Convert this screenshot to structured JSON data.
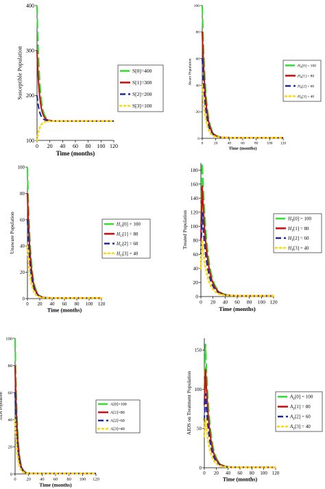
{
  "chart_data": [
    {
      "type": "line",
      "title": "",
      "xlabel": "Time (months)",
      "ylabel": "Susceptible Population",
      "xlim": [
        0,
        120
      ],
      "ylim": [
        100,
        400
      ],
      "xticks": [
        "0",
        "20",
        "40",
        "60",
        "80",
        "100",
        "120"
      ],
      "yticks": [
        "100",
        "200",
        "300",
        "400"
      ],
      "legend_position": "right",
      "grid": false,
      "equilibrium": 143,
      "decay": 0.25,
      "series": [
        {
          "name": "S[0]=400",
          "init": 400,
          "color": "#33dd33",
          "dash": "14,5"
        },
        {
          "name": "S[1]=300",
          "init": 300,
          "color": "#cc1111",
          "dash": ""
        },
        {
          "name": "S[2]=200",
          "init": 200,
          "color": "#1a2aa0",
          "dash": "8,4"
        },
        {
          "name": "S[3]=100",
          "init": 100,
          "color": "#ffd700",
          "dash": "2,4"
        }
      ]
    },
    {
      "type": "line",
      "title": "",
      "xlabel": "Time (months)",
      "ylabel": "Aware Population",
      "xlim": [
        0,
        120
      ],
      "ylim": [
        0,
        100
      ],
      "xticks": [
        "0",
        "20",
        "40",
        "60",
        "80",
        "100",
        "120"
      ],
      "yticks": [
        "0",
        "20",
        "40",
        "60",
        "80",
        "100"
      ],
      "legend_position": "right",
      "grid": false,
      "equilibrium": 0.5,
      "decay": 0.2,
      "series": [
        {
          "name": "H_A[0] = 100",
          "init": 100,
          "color": "#33dd33",
          "dash": "14,5"
        },
        {
          "name": "H_A[1] = 80",
          "init": 80,
          "color": "#cc1111",
          "dash": ""
        },
        {
          "name": "H_A[2] = 60",
          "init": 60,
          "color": "#1a2aa0",
          "dash": "8,4"
        },
        {
          "name": "H_A[3] = 40",
          "init": 40,
          "color": "#ffd700",
          "dash": "2,4"
        }
      ]
    },
    {
      "type": "line",
      "title": "",
      "xlabel": "Time (months)",
      "ylabel": "Unaware Population",
      "xlim": [
        0,
        120
      ],
      "ylim": [
        0,
        100
      ],
      "xticks": [
        "0",
        "20",
        "40",
        "60",
        "80",
        "100",
        "120"
      ],
      "yticks": [
        "0",
        "20",
        "40",
        "60",
        "80",
        "100"
      ],
      "legend_position": "right",
      "grid": false,
      "equilibrium": 0.5,
      "decay": 0.2,
      "series": [
        {
          "name": "H_U[0] = 100",
          "init": 100,
          "color": "#33dd33",
          "dash": "14,5"
        },
        {
          "name": "H_U[1] = 80",
          "init": 80,
          "color": "#cc1111",
          "dash": ""
        },
        {
          "name": "H_U[2] = 60",
          "init": 60,
          "color": "#1a2aa0",
          "dash": "8,4"
        },
        {
          "name": "H_U[3] = 40",
          "init": 40,
          "color": "#ffd700",
          "dash": "2,4"
        }
      ]
    },
    {
      "type": "line",
      "title": "",
      "xlabel": "Time (months)",
      "ylabel": "Treated Population",
      "xlim": [
        0,
        120
      ],
      "ylim": [
        0,
        190
      ],
      "xticks": [
        "0",
        "20",
        "40",
        "60",
        "80",
        "100",
        "120"
      ],
      "yticks": [
        "0",
        "20",
        "40",
        "60",
        "80",
        "100",
        "120",
        "140",
        "160",
        "180"
      ],
      "legend_position": "right",
      "grid": false,
      "equilibrium": 1,
      "decay": 0.12,
      "peak_month": 2,
      "series": [
        {
          "name": "H_T[0] = 100",
          "init": 100,
          "peak": 195,
          "color": "#33dd33",
          "dash": "14,5"
        },
        {
          "name": "H_T[1] = 80",
          "init": 80,
          "peak": 158,
          "color": "#cc1111",
          "dash": ""
        },
        {
          "name": "H_T[2] = 60",
          "init": 60,
          "peak": 120,
          "color": "#1a2aa0",
          "dash": "8,4"
        },
        {
          "name": "H_T[3] = 40",
          "init": 40,
          "peak": 80,
          "color": "#ffd700",
          "dash": "2,4"
        }
      ]
    },
    {
      "type": "line",
      "title": "",
      "xlabel": "Time (months)",
      "ylabel": "AIDS Population",
      "xlim": [
        0,
        120
      ],
      "ylim": [
        0,
        100
      ],
      "xticks": [
        "0",
        "20",
        "40",
        "60",
        "80",
        "100",
        "120"
      ],
      "yticks": [
        "0",
        "20",
        "40",
        "60",
        "80",
        "100"
      ],
      "legend_position": "right",
      "grid": false,
      "equilibrium": 0.3,
      "decay": 0.3,
      "series": [
        {
          "name": "A[0]=100",
          "init": 100,
          "color": "#33dd33",
          "dash": "14,5"
        },
        {
          "name": "A[1]=80",
          "init": 80,
          "color": "#cc1111",
          "dash": ""
        },
        {
          "name": "A[2]=60",
          "init": 60,
          "color": "#1a2aa0",
          "dash": "8,4"
        },
        {
          "name": "A[3]=40",
          "init": 40,
          "color": "#ffd700",
          "dash": "2,4"
        }
      ]
    },
    {
      "type": "line",
      "title": "",
      "xlabel": "Time (months)",
      "ylabel": "AIDS on Treatment Population",
      "xlim": [
        0,
        120
      ],
      "ylim": [
        0,
        165
      ],
      "xticks": [
        "0",
        "20",
        "40",
        "60",
        "80",
        "100",
        "120"
      ],
      "yticks": [
        "0",
        "50",
        "100",
        "150"
      ],
      "legend_position": "right",
      "grid": false,
      "equilibrium": 0.5,
      "decay": 0.14,
      "peak_month": 2,
      "series": [
        {
          "name": "A_T[0] = 100",
          "init": 100,
          "peak": 158,
          "color": "#33dd33",
          "dash": "14,5"
        },
        {
          "name": "A_T[1] = 80",
          "init": 80,
          "peak": 126,
          "color": "#cc1111",
          "dash": ""
        },
        {
          "name": "A_T[2] = 60",
          "init": 60,
          "peak": 95,
          "color": "#1a2aa0",
          "dash": "8,4"
        },
        {
          "name": "A_T[3] = 40",
          "init": 40,
          "peak": 63,
          "color": "#ffd700",
          "dash": "2,4"
        }
      ]
    }
  ]
}
